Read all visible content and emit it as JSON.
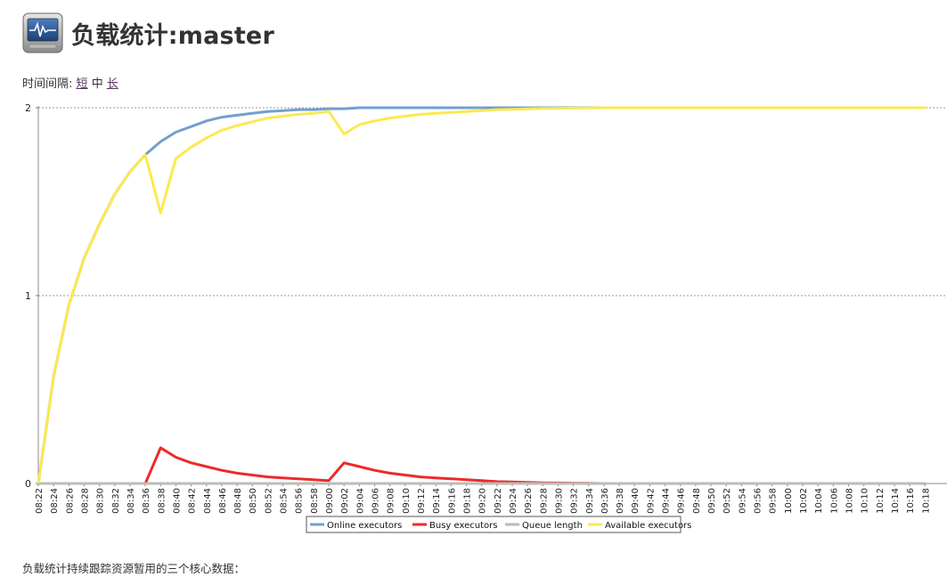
{
  "page": {
    "title": "负载统计:master",
    "footer_text": "负载统计持续跟踪资源暂用的三个核心数据："
  },
  "timespan": {
    "label": "时间间隔:",
    "options": [
      {
        "label": "短",
        "link": true
      },
      {
        "label": "中",
        "link": false
      },
      {
        "label": "长",
        "link": true
      }
    ]
  },
  "icons": {
    "header_icon": "monitor-icon"
  },
  "chart_data": {
    "type": "line",
    "title": "",
    "xlabel": "",
    "ylabel": "",
    "ylim": [
      0,
      2
    ],
    "yticks": [
      "0",
      "1",
      "2"
    ],
    "grid": true,
    "legend_position": "bottom-center",
    "x": [
      "08:22",
      "08:24",
      "08:26",
      "08:28",
      "08:30",
      "08:32",
      "08:34",
      "08:36",
      "08:38",
      "08:40",
      "08:42",
      "08:44",
      "08:46",
      "08:48",
      "08:50",
      "08:52",
      "08:54",
      "08:56",
      "08:58",
      "09:00",
      "09:02",
      "09:04",
      "09:06",
      "09:08",
      "09:10",
      "09:12",
      "09:14",
      "09:16",
      "09:18",
      "09:20",
      "09:22",
      "09:24",
      "09:26",
      "09:28",
      "09:30",
      "09:32",
      "09:34",
      "09:36",
      "09:38",
      "09:40",
      "09:42",
      "09:44",
      "09:46",
      "09:48",
      "09:50",
      "09:52",
      "09:54",
      "09:56",
      "09:58",
      "10:00",
      "10:02",
      "10:04",
      "10:06",
      "10:08",
      "10:10",
      "10:12",
      "10:14",
      "10:16",
      "10:18"
    ],
    "series": [
      {
        "name": "Online executors",
        "color": "#729fcf",
        "values": [
          0.0,
          0.57,
          0.95,
          1.2,
          1.38,
          1.54,
          1.66,
          1.75,
          1.82,
          1.87,
          1.9,
          1.93,
          1.95,
          1.96,
          1.97,
          1.98,
          1.985,
          1.99,
          1.99,
          1.995,
          1.995,
          2.0,
          2.0,
          2.0,
          2.0,
          2.0,
          2.0,
          2.0,
          2.0,
          2.0,
          2.0,
          2.0,
          2.0,
          2.0,
          2.0,
          2.0,
          2.0,
          2.0,
          2.0,
          2.0,
          2.0,
          2.0,
          2.0,
          2.0,
          2.0,
          2.0,
          2.0,
          2.0,
          2.0,
          2.0,
          2.0,
          2.0,
          2.0,
          2.0,
          2.0,
          2.0,
          2.0,
          2.0,
          2.0
        ]
      },
      {
        "name": "Busy executors",
        "color": "#ef2929",
        "values": [
          0,
          0,
          0,
          0,
          0,
          0,
          0,
          0,
          0.19,
          0.14,
          0.11,
          0.09,
          0.07,
          0.055,
          0.045,
          0.035,
          0.03,
          0.025,
          0.02,
          0.015,
          0.11,
          0.09,
          0.07,
          0.055,
          0.045,
          0.035,
          0.03,
          0.025,
          0.02,
          0.015,
          0.01,
          0.008,
          0.006,
          0.004,
          0.003,
          0.002,
          0.001,
          0,
          0,
          0,
          0,
          0,
          0,
          0,
          0,
          0,
          0,
          0,
          0,
          0,
          0,
          0,
          0,
          0,
          0,
          0,
          0,
          0,
          0
        ]
      },
      {
        "name": "Queue length",
        "color": "#babdb6",
        "values": [
          0,
          0,
          0,
          0,
          0,
          0,
          0,
          0,
          0,
          0,
          0,
          0,
          0,
          0,
          0,
          0,
          0,
          0,
          0,
          0,
          0,
          0,
          0,
          0,
          0,
          0,
          0,
          0,
          0,
          0,
          0,
          0,
          0,
          0,
          0,
          0,
          0,
          0,
          0,
          0,
          0,
          0,
          0,
          0,
          0,
          0,
          0,
          0,
          0,
          0,
          0,
          0,
          0,
          0,
          0,
          0,
          0,
          0,
          0
        ]
      },
      {
        "name": "Available executors",
        "color": "#fce94f",
        "values": [
          0.0,
          0.57,
          0.95,
          1.2,
          1.38,
          1.54,
          1.66,
          1.75,
          1.44,
          1.73,
          1.79,
          1.84,
          1.88,
          1.905,
          1.925,
          1.945,
          1.955,
          1.965,
          1.97,
          1.98,
          1.86,
          1.91,
          1.93,
          1.945,
          1.955,
          1.965,
          1.97,
          1.975,
          1.98,
          1.985,
          1.99,
          1.992,
          1.994,
          1.996,
          1.997,
          1.998,
          1.999,
          2.0,
          2.0,
          2.0,
          2.0,
          2.0,
          2.0,
          2.0,
          2.0,
          2.0,
          2.0,
          2.0,
          2.0,
          2.0,
          2.0,
          2.0,
          2.0,
          2.0,
          2.0,
          2.0,
          2.0,
          2.0,
          2.0
        ]
      }
    ]
  }
}
